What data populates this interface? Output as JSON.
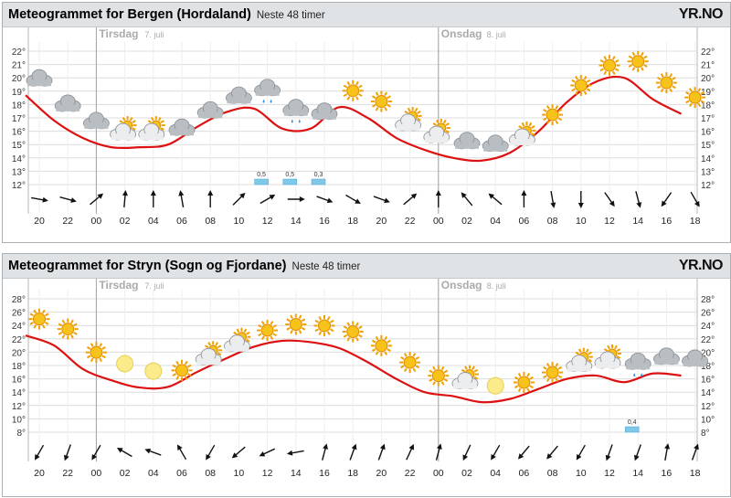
{
  "colors": {
    "temperature_line": "#dd1111",
    "precip_bar": "#7fc8e8",
    "grid": "#dcdcdc",
    "header_bg": "#dfe3e5"
  },
  "logo_text": "YR.NO",
  "panels": [
    {
      "title": "Meteogrammet for Bergen (Hordaland)",
      "subtitle": "Neste 48 timer",
      "day_labels": [
        {
          "name": "Tirsdag",
          "date": "7. juli"
        },
        {
          "name": "Onsdag",
          "date": "8. juli"
        }
      ]
    },
    {
      "title": "Meteogrammet for Stryn (Sogn og Fjordane)",
      "subtitle": "Neste 48 timer",
      "day_labels": [
        {
          "name": "Tirsdag",
          "date": "7. juli"
        },
        {
          "name": "Onsdag",
          "date": "8. juli"
        }
      ]
    }
  ],
  "chart_data": [
    {
      "type": "line",
      "title": "Meteogrammet for Bergen (Hordaland)",
      "x": [
        "20",
        "22",
        "00",
        "02",
        "04",
        "06",
        "08",
        "10",
        "12",
        "14",
        "16",
        "18",
        "20",
        "22",
        "00",
        "02",
        "04",
        "06",
        "08",
        "10",
        "12",
        "14",
        "16",
        "18"
      ],
      "ylim": [
        12,
        22
      ],
      "y_ticks": [
        "12°",
        "13°",
        "14°",
        "15°",
        "16°",
        "17°",
        "18°",
        "19°",
        "20°",
        "21°",
        "22°"
      ],
      "temperature": [
        18.7,
        16.8,
        15.5,
        14.8,
        14.8,
        15.0,
        16.3,
        17.4,
        17.7,
        16.2,
        16.2,
        17.8,
        17.0,
        15.5,
        14.6,
        14.0,
        13.8,
        14.4,
        16.0,
        18.2,
        19.7,
        20.0,
        18.4,
        17.3
      ],
      "symbols": [
        "cloud",
        "cloud",
        "cloud",
        "partcloud",
        "partcloud",
        "cloud",
        "cloud",
        "cloud",
        "cloud-rain",
        "cloud-rain",
        "cloud",
        "sun",
        "sun",
        "partcloud",
        "partcloud",
        "cloud",
        "cloud",
        "partcloud",
        "sun",
        "sun",
        "sun",
        "sun",
        "sun",
        "sun"
      ],
      "precipitation": [
        {
          "index": 8,
          "value": "0,5"
        },
        {
          "index": 9,
          "value": "0,5"
        },
        {
          "index": 10,
          "value": "0,3"
        }
      ],
      "wind_angles": [
        100,
        105,
        50,
        5,
        0,
        350,
        0,
        45,
        60,
        90,
        110,
        120,
        110,
        50,
        0,
        320,
        310,
        0,
        170,
        180,
        145,
        165,
        215,
        150
      ],
      "grid": true,
      "legend": "none"
    },
    {
      "type": "line",
      "title": "Meteogrammet for Stryn (Sogn og Fjordane)",
      "x": [
        "20",
        "22",
        "00",
        "02",
        "04",
        "06",
        "08",
        "10",
        "12",
        "14",
        "16",
        "18",
        "20",
        "22",
        "00",
        "02",
        "04",
        "06",
        "08",
        "10",
        "12",
        "14",
        "16",
        "18"
      ],
      "ylim": [
        8,
        28
      ],
      "y_ticks": [
        "8°",
        "10°",
        "12°",
        "14°",
        "16°",
        "18°",
        "20°",
        "22°",
        "24°",
        "26°",
        "28°"
      ],
      "temperature": [
        22.5,
        21.0,
        17.5,
        15.8,
        14.7,
        14.8,
        17.0,
        19.0,
        20.8,
        21.7,
        21.5,
        20.6,
        18.5,
        16.0,
        14.0,
        13.4,
        12.5,
        13.0,
        14.5,
        16.0,
        16.5,
        15.5,
        16.8,
        16.5
      ],
      "symbols": [
        "sun",
        "sun",
        "sun",
        "moon",
        "moon",
        "sun",
        "partcloud",
        "partcloud",
        "sun",
        "sun",
        "sun",
        "sun",
        "sun",
        "sun",
        "sun",
        "partcloud",
        "moon",
        "sun",
        "sun",
        "partcloud",
        "partcloud",
        "cloud-rain",
        "cloud",
        "cloud"
      ],
      "precipitation": [
        {
          "index": 21,
          "value": "0,4"
        }
      ],
      "wind_angles": [
        210,
        200,
        210,
        300,
        290,
        330,
        210,
        230,
        245,
        260,
        15,
        20,
        20,
        25,
        15,
        205,
        210,
        220,
        220,
        210,
        200,
        200,
        10,
        20
      ],
      "grid": true,
      "legend": "none"
    }
  ]
}
